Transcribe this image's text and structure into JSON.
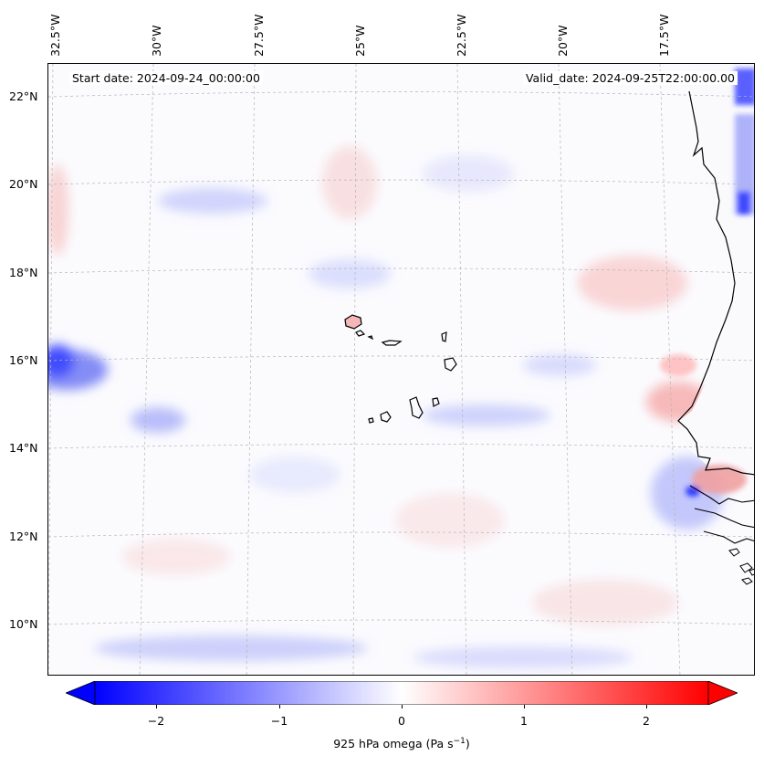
{
  "map": {
    "start_date": "Start date: 2024-09-24_00:00:00",
    "valid_date": "Valid_date: 2024-09-25T22:00:00.00",
    "lon_labels": [
      "32.5°W",
      "30°W",
      "27.5°W",
      "25°W",
      "22.5°W",
      "20°W",
      "17.5°W"
    ],
    "lat_labels": [
      "22°N",
      "20°N",
      "18°N",
      "16°N",
      "14°N",
      "12°N",
      "10°N"
    ],
    "gridlines": true,
    "features": [
      "Cape Verde islands",
      "West African coastline"
    ]
  },
  "colorbar": {
    "label": "925 hPa omega (Pa s",
    "label_sup": "−1",
    "label_end": ")",
    "ticks": [
      "−2",
      "−1",
      "0",
      "1",
      "2"
    ],
    "colors": {
      "negative": "#0000ff",
      "zero": "#ffffff",
      "positive": "#ff0000"
    },
    "extend": "both"
  }
}
